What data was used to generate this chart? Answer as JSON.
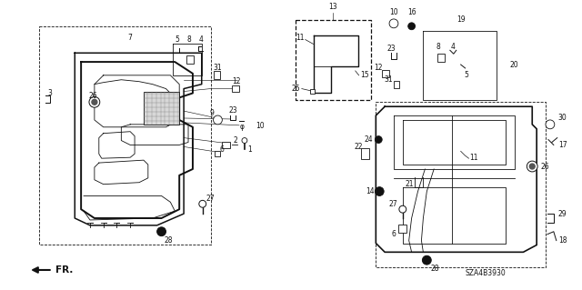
{
  "bg_color": "#ffffff",
  "diagram_code": "SZA4B3930",
  "fr_label": "FR.",
  "black": "#111111",
  "gray": "#888888",
  "fs": 5.5,
  "lw": 0.6
}
